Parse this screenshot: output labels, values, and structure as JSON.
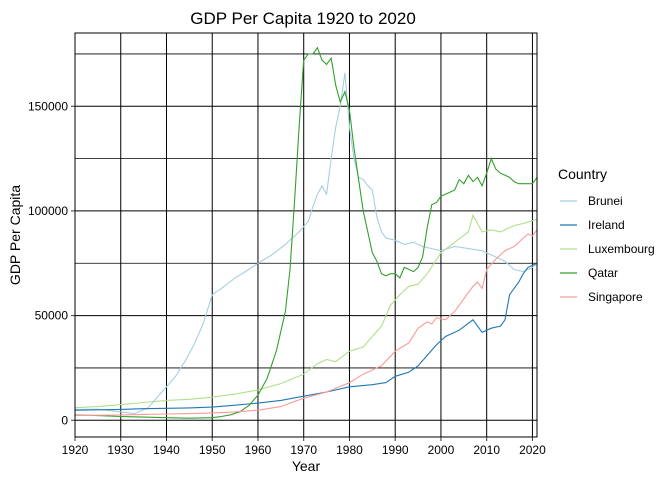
{
  "chart_data": {
    "type": "line",
    "title": "GDP Per Capita 1920 to 2020",
    "xlabel": "Year",
    "ylabel": "GDP Per Capita",
    "xlim": [
      1920,
      2021
    ],
    "ylim": [
      -8000,
      185000
    ],
    "x_ticks": [
      1920,
      1930,
      1940,
      1950,
      1960,
      1970,
      1980,
      1990,
      2000,
      2010,
      2020
    ],
    "y_ticks": [
      0,
      50000,
      100000,
      150000
    ],
    "grid": true,
    "legend": {
      "title": "Country",
      "position": "right"
    },
    "series": [
      {
        "name": "Brunei",
        "color": "#a6cee3",
        "points": [
          [
            1920,
            5200
          ],
          [
            1925,
            5300
          ],
          [
            1930,
            4000
          ],
          [
            1933,
            3200
          ],
          [
            1936,
            6000
          ],
          [
            1938,
            11000
          ],
          [
            1940,
            16000
          ],
          [
            1942,
            21000
          ],
          [
            1944,
            28000
          ],
          [
            1946,
            36000
          ],
          [
            1948,
            46000
          ],
          [
            1950,
            60000
          ],
          [
            1952,
            63000
          ],
          [
            1955,
            68000
          ],
          [
            1958,
            72000
          ],
          [
            1960,
            75000
          ],
          [
            1963,
            79000
          ],
          [
            1966,
            84000
          ],
          [
            1969,
            90000
          ],
          [
            1971,
            95000
          ],
          [
            1972,
            102000
          ],
          [
            1973,
            108000
          ],
          [
            1974,
            112000
          ],
          [
            1975,
            108000
          ],
          [
            1976,
            125000
          ],
          [
            1977,
            140000
          ],
          [
            1978,
            150000
          ],
          [
            1979,
            166000
          ],
          [
            1980,
            140000
          ],
          [
            1981,
            125000
          ],
          [
            1982,
            116000
          ],
          [
            1983,
            115000
          ],
          [
            1984,
            112000
          ],
          [
            1985,
            110000
          ],
          [
            1986,
            97000
          ],
          [
            1987,
            90000
          ],
          [
            1988,
            87000
          ],
          [
            1990,
            86000
          ],
          [
            1992,
            84000
          ],
          [
            1994,
            85000
          ],
          [
            1996,
            83000
          ],
          [
            1998,
            82000
          ],
          [
            2000,
            81000
          ],
          [
            2003,
            83000
          ],
          [
            2006,
            82000
          ],
          [
            2009,
            81000
          ],
          [
            2012,
            78000
          ],
          [
            2014,
            76000
          ],
          [
            2016,
            72000
          ],
          [
            2018,
            71000
          ],
          [
            2020,
            73000
          ],
          [
            2021,
            75000
          ]
        ]
      },
      {
        "name": "Ireland",
        "color": "#1f78b4",
        "points": [
          [
            1920,
            4800
          ],
          [
            1925,
            5000
          ],
          [
            1930,
            5200
          ],
          [
            1935,
            5500
          ],
          [
            1940,
            5700
          ],
          [
            1945,
            5900
          ],
          [
            1950,
            6300
          ],
          [
            1955,
            7200
          ],
          [
            1960,
            8200
          ],
          [
            1965,
            9500
          ],
          [
            1970,
            11500
          ],
          [
            1975,
            13500
          ],
          [
            1980,
            16000
          ],
          [
            1985,
            17000
          ],
          [
            1988,
            18000
          ],
          [
            1990,
            21000
          ],
          [
            1993,
            23000
          ],
          [
            1995,
            26000
          ],
          [
            1997,
            31000
          ],
          [
            1999,
            36000
          ],
          [
            2001,
            40000
          ],
          [
            2004,
            43000
          ],
          [
            2007,
            48000
          ],
          [
            2009,
            42000
          ],
          [
            2011,
            44000
          ],
          [
            2013,
            45000
          ],
          [
            2014,
            48000
          ],
          [
            2015,
            60000
          ],
          [
            2016,
            63000
          ],
          [
            2017,
            66000
          ],
          [
            2018,
            70000
          ],
          [
            2019,
            73000
          ],
          [
            2021,
            75000
          ]
        ]
      },
      {
        "name": "Luxembourg",
        "color": "#b2df8a",
        "points": [
          [
            1920,
            6000
          ],
          [
            1925,
            6500
          ],
          [
            1930,
            7500
          ],
          [
            1935,
            8500
          ],
          [
            1940,
            9500
          ],
          [
            1945,
            10000
          ],
          [
            1950,
            11000
          ],
          [
            1955,
            12500
          ],
          [
            1960,
            14500
          ],
          [
            1965,
            17500
          ],
          [
            1970,
            22000
          ],
          [
            1973,
            27000
          ],
          [
            1975,
            29000
          ],
          [
            1977,
            28000
          ],
          [
            1980,
            33000
          ],
          [
            1983,
            35000
          ],
          [
            1985,
            40000
          ],
          [
            1987,
            45000
          ],
          [
            1989,
            55000
          ],
          [
            1991,
            60000
          ],
          [
            1993,
            64000
          ],
          [
            1995,
            65000
          ],
          [
            1997,
            70000
          ],
          [
            2000,
            80000
          ],
          [
            2003,
            85000
          ],
          [
            2006,
            90000
          ],
          [
            2007,
            98000
          ],
          [
            2009,
            90000
          ],
          [
            2011,
            91000
          ],
          [
            2013,
            90000
          ],
          [
            2016,
            93000
          ],
          [
            2018,
            94000
          ],
          [
            2021,
            96000
          ]
        ]
      },
      {
        "name": "Qatar",
        "color": "#33a02c",
        "points": [
          [
            1920,
            2500
          ],
          [
            1925,
            2200
          ],
          [
            1930,
            1800
          ],
          [
            1935,
            1500
          ],
          [
            1940,
            1200
          ],
          [
            1945,
            1000
          ],
          [
            1950,
            1200
          ],
          [
            1952,
            1800
          ],
          [
            1954,
            2600
          ],
          [
            1956,
            4000
          ],
          [
            1958,
            7000
          ],
          [
            1960,
            12000
          ],
          [
            1962,
            20000
          ],
          [
            1964,
            33000
          ],
          [
            1966,
            52000
          ],
          [
            1967,
            72000
          ],
          [
            1968,
            105000
          ],
          [
            1969,
            140000
          ],
          [
            1970,
            172000
          ],
          [
            1971,
            175000
          ],
          [
            1972,
            175000
          ],
          [
            1973,
            178000
          ],
          [
            1974,
            172000
          ],
          [
            1975,
            170000
          ],
          [
            1976,
            173000
          ],
          [
            1977,
            160000
          ],
          [
            1978,
            152000
          ],
          [
            1979,
            157000
          ],
          [
            1980,
            148000
          ],
          [
            1981,
            130000
          ],
          [
            1982,
            115000
          ],
          [
            1983,
            100000
          ],
          [
            1984,
            90000
          ],
          [
            1985,
            80000
          ],
          [
            1986,
            76000
          ],
          [
            1987,
            70000
          ],
          [
            1988,
            69000
          ],
          [
            1989,
            70000
          ],
          [
            1990,
            70000
          ],
          [
            1991,
            68000
          ],
          [
            1992,
            73000
          ],
          [
            1993,
            72000
          ],
          [
            1994,
            71000
          ],
          [
            1995,
            73000
          ],
          [
            1996,
            78000
          ],
          [
            1997,
            92000
          ],
          [
            1998,
            103000
          ],
          [
            1999,
            104000
          ],
          [
            2000,
            107000
          ],
          [
            2001,
            108000
          ],
          [
            2002,
            109000
          ],
          [
            2003,
            110000
          ],
          [
            2004,
            115000
          ],
          [
            2005,
            113000
          ],
          [
            2006,
            117000
          ],
          [
            2007,
            114000
          ],
          [
            2008,
            116000
          ],
          [
            2009,
            112000
          ],
          [
            2010,
            118000
          ],
          [
            2011,
            125000
          ],
          [
            2012,
            120000
          ],
          [
            2013,
            118000
          ],
          [
            2014,
            117000
          ],
          [
            2015,
            116000
          ],
          [
            2016,
            114000
          ],
          [
            2017,
            113000
          ],
          [
            2018,
            113000
          ],
          [
            2019,
            113000
          ],
          [
            2020,
            113000
          ],
          [
            2021,
            116000
          ]
        ]
      },
      {
        "name": "Singapore",
        "color": "#fb9a99",
        "points": [
          [
            1920,
            2200
          ],
          [
            1925,
            2400
          ],
          [
            1930,
            2500
          ],
          [
            1935,
            2800
          ],
          [
            1940,
            3000
          ],
          [
            1945,
            3200
          ],
          [
            1950,
            3500
          ],
          [
            1955,
            4000
          ],
          [
            1960,
            4800
          ],
          [
            1965,
            6500
          ],
          [
            1968,
            9000
          ],
          [
            1970,
            10500
          ],
          [
            1975,
            13500
          ],
          [
            1980,
            18000
          ],
          [
            1983,
            22000
          ],
          [
            1985,
            24000
          ],
          [
            1987,
            26000
          ],
          [
            1990,
            33000
          ],
          [
            1993,
            37000
          ],
          [
            1995,
            44000
          ],
          [
            1997,
            47000
          ],
          [
            1998,
            46000
          ],
          [
            1999,
            49000
          ],
          [
            2001,
            48000
          ],
          [
            2003,
            52000
          ],
          [
            2005,
            58000
          ],
          [
            2007,
            64000
          ],
          [
            2008,
            66000
          ],
          [
            2009,
            63000
          ],
          [
            2010,
            72000
          ],
          [
            2012,
            77000
          ],
          [
            2014,
            81000
          ],
          [
            2016,
            83000
          ],
          [
            2018,
            87000
          ],
          [
            2019,
            89000
          ],
          [
            2020,
            88000
          ],
          [
            2021,
            91000
          ]
        ]
      }
    ]
  }
}
